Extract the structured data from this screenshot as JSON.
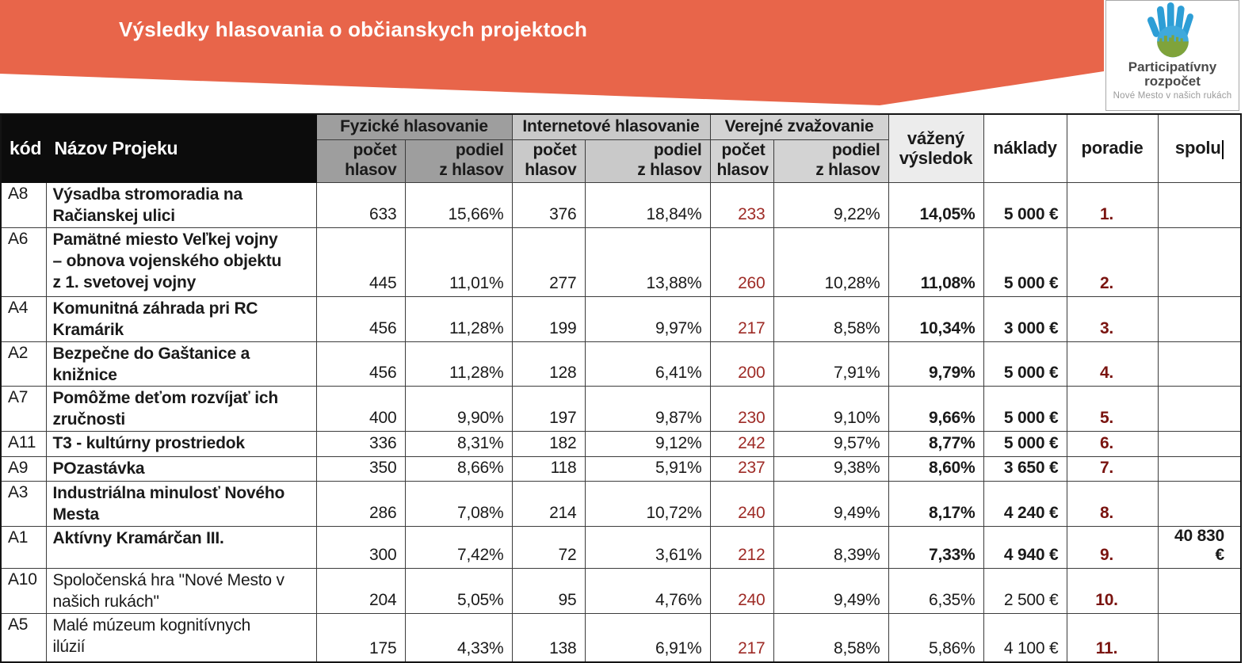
{
  "banner": {
    "title": "Výsledky hlasovania o občianskych projektoch",
    "bg_color": "#E8654A"
  },
  "logo": {
    "name_line1": "Participatívny",
    "name_line2": "rozpočet",
    "tagline": "Nové Mesto v našich rukách",
    "hand_color": "#2D9ED6",
    "skyline_color": "#7FA33B",
    "water_color": "#1B7FBD"
  },
  "table": {
    "headers": {
      "code": "kód",
      "name": "Názov Projeku",
      "groups": [
        {
          "label": "Fyzické hlasovanie"
        },
        {
          "label": "Internetové hlasovanie"
        },
        {
          "label": "Verejné zvažovanie"
        }
      ],
      "sub_count": "počet\nhlasov",
      "sub_share": "podiel\nz hlasov",
      "weighted": "vážený\nvýsledok",
      "costs": "náklady",
      "rank": "poradie",
      "total": "spolu"
    },
    "colors": {
      "group_physical_bg": "#9E9E9E",
      "group_internet_bg": "#C9C9C9",
      "group_public_bg": "#D3D3D3",
      "weighted_bg": "#ECECEC",
      "public_votes_text": "#9E2B26",
      "rank_text": "#7A1410"
    },
    "rows": [
      {
        "code": "A8",
        "name": "Výsadba stromoradia na\nRačianskej ulici",
        "funded": true,
        "phys_votes": "633",
        "phys_share": "15,66%",
        "net_votes": "376",
        "net_share": "18,84%",
        "public_votes": "233",
        "public_share": "9,22%",
        "weighted": "14,05%",
        "costs": "5 000 €",
        "rank": "1.",
        "total": ""
      },
      {
        "code": "A6",
        "name": "Pamätné miesto Veľkej vojny\n– obnova vojenského objektu\nz 1. svetovej vojny",
        "funded": true,
        "phys_votes": "445",
        "phys_share": "11,01%",
        "net_votes": "277",
        "net_share": "13,88%",
        "public_votes": "260",
        "public_share": "10,28%",
        "weighted": "11,08%",
        "costs": "5 000 €",
        "rank": "2.",
        "total": ""
      },
      {
        "code": "A4",
        "name": "Komunitná záhrada pri RC\nKramárik",
        "funded": true,
        "phys_votes": "456",
        "phys_share": "11,28%",
        "net_votes": "199",
        "net_share": "9,97%",
        "public_votes": "217",
        "public_share": "8,58%",
        "weighted": "10,34%",
        "costs": "3 000 €",
        "rank": "3.",
        "total": ""
      },
      {
        "code": "A2",
        "name": "Bezpečne do Gaštanice a\nknižnice",
        "funded": true,
        "phys_votes": "456",
        "phys_share": "11,28%",
        "net_votes": "128",
        "net_share": "6,41%",
        "public_votes": "200",
        "public_share": "7,91%",
        "weighted": "9,79%",
        "costs": "5 000 €",
        "rank": "4.",
        "total": ""
      },
      {
        "code": "A7",
        "name": "Pomôžme deťom rozvíjať ich\nzručnosti",
        "funded": true,
        "phys_votes": "400",
        "phys_share": "9,90%",
        "net_votes": "197",
        "net_share": "9,87%",
        "public_votes": "230",
        "public_share": "9,10%",
        "weighted": "9,66%",
        "costs": "5 000 €",
        "rank": "5.",
        "total": ""
      },
      {
        "code": "A11",
        "name": "T3 - kultúrny prostriedok",
        "funded": true,
        "phys_votes": "336",
        "phys_share": "8,31%",
        "net_votes": "182",
        "net_share": "9,12%",
        "public_votes": "242",
        "public_share": "9,57%",
        "weighted": "8,77%",
        "costs": "5 000 €",
        "rank": "6.",
        "total": ""
      },
      {
        "code": "A9",
        "name": "POzastávka",
        "funded": true,
        "phys_votes": "350",
        "phys_share": "8,66%",
        "net_votes": "118",
        "net_share": "5,91%",
        "public_votes": "237",
        "public_share": "9,38%",
        "weighted": "8,60%",
        "costs": "3 650 €",
        "rank": "7.",
        "total": ""
      },
      {
        "code": "A3",
        "name": "Industriálna minulosť Nového\nMesta",
        "funded": true,
        "phys_votes": "286",
        "phys_share": "7,08%",
        "net_votes": "214",
        "net_share": "10,72%",
        "public_votes": "240",
        "public_share": "9,49%",
        "weighted": "8,17%",
        "costs": "4 240 €",
        "rank": "8.",
        "total": ""
      },
      {
        "code": "A1",
        "name": "Aktívny Kramárčan III.",
        "funded": true,
        "phys_votes": "300",
        "phys_share": "7,42%",
        "net_votes": "72",
        "net_share": "3,61%",
        "public_votes": "212",
        "public_share": "8,39%",
        "weighted": "7,33%",
        "costs": "4 940 €",
        "rank": "9.",
        "total": "40 830 €"
      },
      {
        "code": "A10",
        "name": "Spoločenská hra \"Nové Mesto v\nnašich rukách\"",
        "funded": false,
        "phys_votes": "204",
        "phys_share": "5,05%",
        "net_votes": "95",
        "net_share": "4,76%",
        "public_votes": "240",
        "public_share": "9,49%",
        "weighted": "6,35%",
        "costs": "2 500 €",
        "rank": "10.",
        "total": ""
      },
      {
        "code": "A5",
        "name": "Malé múzeum kognitívnych\nilúzií",
        "funded": false,
        "phys_votes": "175",
        "phys_share": "4,33%",
        "net_votes": "138",
        "net_share": "6,91%",
        "public_votes": "217",
        "public_share": "8,58%",
        "weighted": "5,86%",
        "costs": "4 100 €",
        "rank": "11.",
        "total": ""
      }
    ]
  }
}
